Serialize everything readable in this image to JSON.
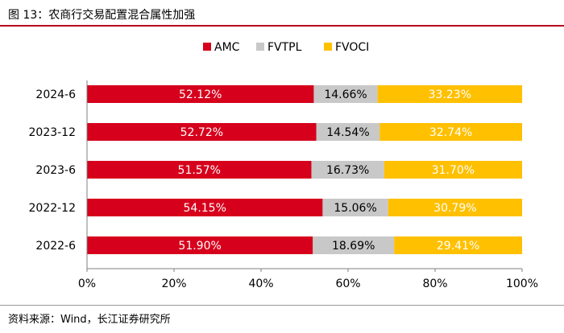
{
  "figure": {
    "title": "图 13：农商行交易配置混合属性加强",
    "source": "资料来源：Wind，长江证券研究所"
  },
  "chart_data": {
    "type": "bar",
    "orientation": "horizontal",
    "stacked": true,
    "categories": [
      "2024-6",
      "2023-12",
      "2023-6",
      "2022-12",
      "2022-6"
    ],
    "series": [
      {
        "name": "AMC",
        "color": "#d6001c",
        "label_color": "#ffffff",
        "values": [
          52.12,
          52.72,
          51.57,
          54.15,
          51.9
        ]
      },
      {
        "name": "FVTPL",
        "color": "#c8c8c8",
        "label_color": "#000000",
        "values": [
          14.66,
          14.54,
          16.73,
          15.06,
          18.69
        ]
      },
      {
        "name": "FVOCI",
        "color": "#ffc000",
        "label_color": "#ffffff",
        "values": [
          33.23,
          32.74,
          31.7,
          30.79,
          29.41
        ]
      }
    ],
    "value_labels": {
      "AMC": [
        "52.12%",
        "52.72%",
        "51.57%",
        "54.15%",
        "51.90%"
      ],
      "FVTPL": [
        "14.66%",
        "14.54%",
        "16.73%",
        "15.06%",
        "18.69%"
      ],
      "FVOCI": [
        "33.23%",
        "32.74%",
        "31.70%",
        "30.79%",
        "29.41%"
      ]
    },
    "xlim": [
      0,
      100
    ],
    "xticks": [
      0,
      20,
      40,
      60,
      80,
      100
    ],
    "xtick_labels": [
      "0%",
      "20%",
      "40%",
      "60%",
      "80%",
      "100%"
    ],
    "legend_position": "top-center",
    "grid": false
  }
}
